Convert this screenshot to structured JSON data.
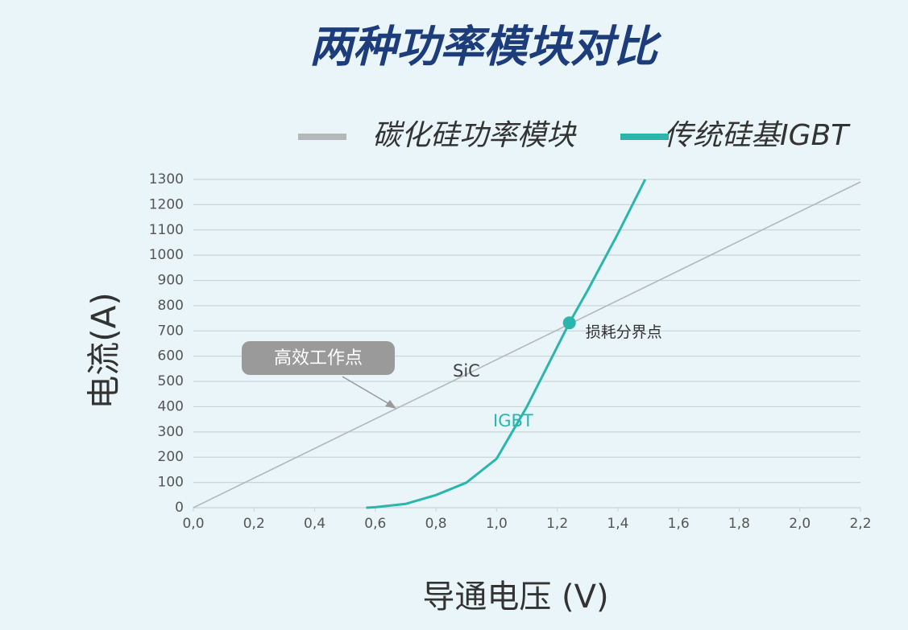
{
  "chart_data": {
    "type": "line",
    "title": "两种功率模块对比",
    "xlabel": "导通电压 (V)",
    "ylabel": "电流(A)",
    "series": [
      {
        "name": "碳化硅功率模块",
        "color": "#b4b8ba",
        "x": [
          0,
          2.2
        ],
        "values": [
          0,
          1290
        ]
      },
      {
        "name": "传统硅基IGBT",
        "color": "#2ab5ad",
        "x": [
          0.57,
          0.6,
          0.7,
          0.8,
          0.9,
          1.0,
          1.1,
          1.2,
          1.24,
          1.3,
          1.4,
          1.49
        ],
        "values": [
          0,
          2,
          15,
          50,
          99,
          194,
          400,
          637,
          732,
          860,
          1085,
          1300
        ]
      }
    ],
    "annotations": [
      "高效工作点",
      "SiC",
      "IGBT"
    ],
    "crossover": {
      "label": "损耗分界点",
      "x": 1.24,
      "y": 732
    },
    "xlim": [
      0,
      2.2
    ],
    "ylim": [
      0,
      1300
    ],
    "xticks": [
      {
        "value": 0,
        "label": "0,0"
      },
      {
        "value": 0.2,
        "label": "0,2"
      },
      {
        "value": 0.4,
        "label": "0,4"
      },
      {
        "value": 0.6,
        "label": "0,6"
      },
      {
        "value": 0.8,
        "label": "0,8"
      },
      {
        "value": 1.0,
        "label": "1,0"
      },
      {
        "value": 1.2,
        "label": "1,2"
      },
      {
        "value": 1.4,
        "label": "1,4"
      },
      {
        "value": 1.6,
        "label": "1,6"
      },
      {
        "value": 1.8,
        "label": "1,8"
      },
      {
        "value": 2.0,
        "label": "2,0"
      },
      {
        "value": 2.2,
        "label": "2,2"
      }
    ],
    "yticks": [
      0,
      100,
      200,
      300,
      400,
      500,
      600,
      700,
      800,
      900,
      1000,
      1100,
      1200,
      1300
    ],
    "grid": true,
    "legend": "top-right"
  }
}
